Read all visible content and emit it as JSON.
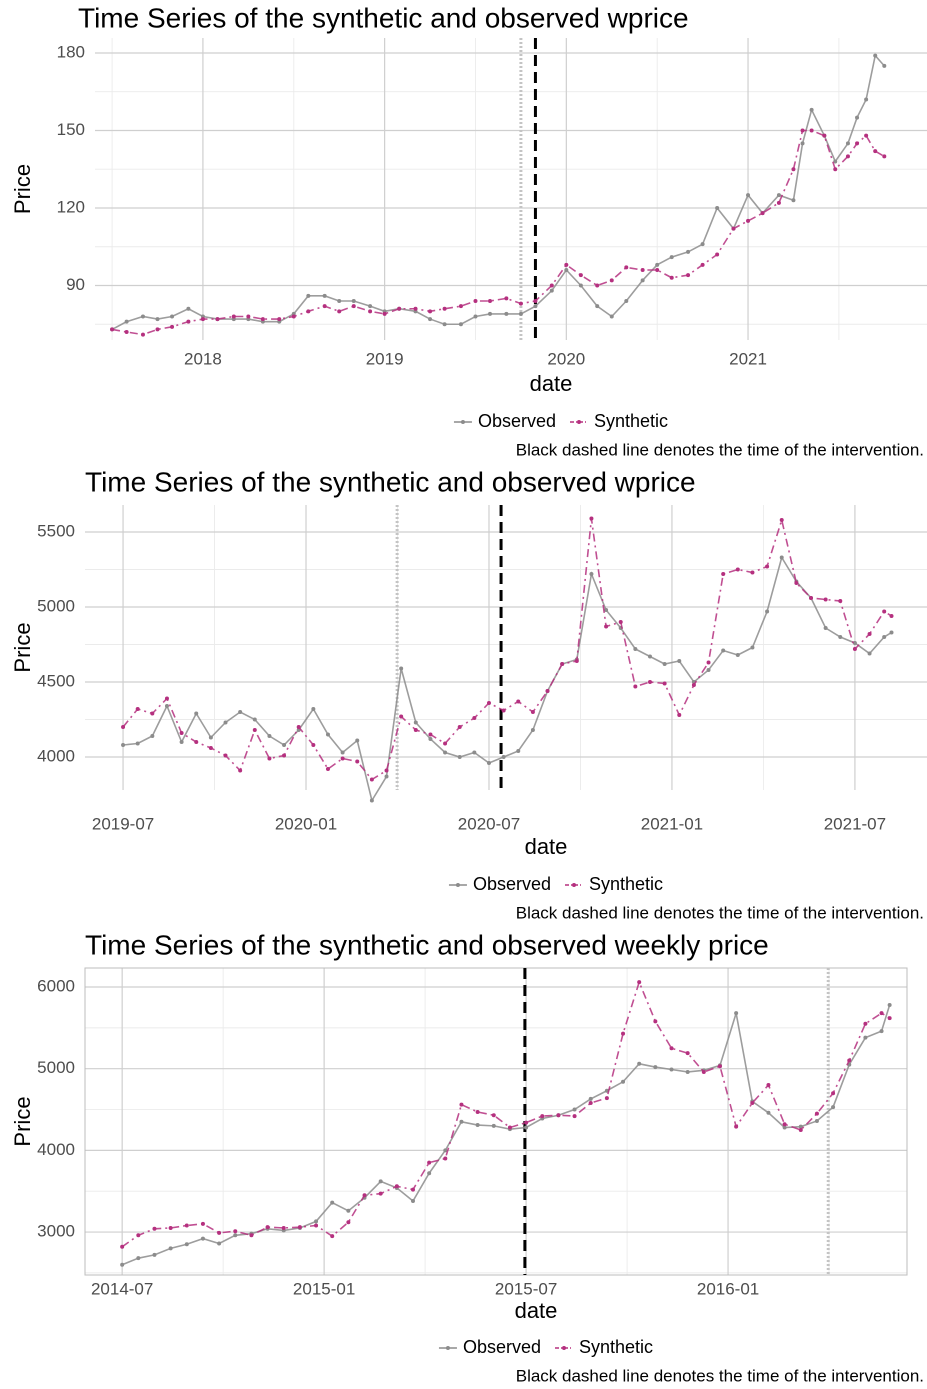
{
  "chart_data": [
    {
      "type": "line",
      "title": "Time Series of the synthetic and observed wprice",
      "x_label": "date",
      "y_label": "Price",
      "caption": "Black dashed line denotes the time of the intervention.",
      "legend": "bottom",
      "grid": true,
      "border": false,
      "xlim": [
        2017.406,
        2021.985
      ],
      "xticks": [
        2018,
        2019,
        2020,
        2021
      ],
      "ylim": [
        68.9,
        185.8
      ],
      "yticks": [
        90,
        120,
        150,
        180
      ],
      "intervention": 2019.83,
      "reference": 2019.75,
      "x": [
        2017.5,
        2017.58,
        2017.67,
        2017.75,
        2017.83,
        2017.92,
        2018,
        2018.08,
        2018.17,
        2018.25,
        2018.33,
        2018.42,
        2018.5,
        2018.58,
        2018.67,
        2018.75,
        2018.83,
        2018.92,
        2019,
        2019.08,
        2019.17,
        2019.25,
        2019.33,
        2019.42,
        2019.5,
        2019.58,
        2019.67,
        2019.75,
        2019.83,
        2019.92,
        2020,
        2020.08,
        2020.17,
        2020.25,
        2020.33,
        2020.42,
        2020.5,
        2020.58,
        2020.67,
        2020.75,
        2020.83,
        2020.92,
        2021,
        2021.08,
        2021.17,
        2021.25,
        2021.3,
        2021.35,
        2021.42,
        2021.48,
        2021.55,
        2021.6,
        2021.65,
        2021.7,
        2021.75
      ],
      "series": [
        {
          "name": "Observed",
          "color": "#8c8c8c",
          "line": "solid",
          "values": [
            73,
            76,
            78,
            77,
            78,
            81,
            78,
            77,
            77,
            77,
            76,
            76,
            79,
            86,
            86,
            84,
            84,
            82,
            80,
            81,
            80,
            77,
            75,
            75,
            78,
            79,
            79,
            79,
            82,
            88,
            96,
            90,
            82,
            78,
            84,
            92,
            98,
            101,
            103,
            106,
            120,
            112,
            125,
            118,
            125,
            123,
            145,
            158,
            148,
            138,
            145,
            155,
            162,
            179,
            175
          ]
        },
        {
          "name": "Synthetic",
          "color": "#b5307f",
          "line": "dashdot",
          "values": [
            73,
            72,
            71,
            73,
            74,
            76,
            77,
            77,
            78,
            78,
            77,
            77,
            78,
            80,
            82,
            80,
            82,
            80,
            79,
            81,
            81,
            80,
            81,
            82,
            84,
            84,
            85,
            83,
            84,
            90,
            98,
            94,
            90,
            92,
            97,
            96,
            96,
            93,
            94,
            98,
            102,
            112,
            115,
            118,
            122,
            135,
            150,
            150,
            148,
            135,
            140,
            145,
            148,
            142,
            140
          ]
        }
      ]
    },
    {
      "type": "line",
      "title": "Time Series of the synthetic and observed wprice",
      "x_label": "date",
      "y_label": "Price",
      "caption": "Black dashed line denotes the time of the intervention.",
      "legend": "bottom",
      "grid": true,
      "border": false,
      "xlim": [
        2019.396,
        2021.697
      ],
      "xticks": [
        {
          "value": 2019.5,
          "label": "2019-07"
        },
        {
          "value": 2020,
          "label": "2020-01"
        },
        {
          "value": 2020.5,
          "label": "2020-07"
        },
        {
          "value": 2021,
          "label": "2021-01"
        },
        {
          "value": 2021.5,
          "label": "2021-07"
        }
      ],
      "ylim": [
        3780,
        5680
      ],
      "yticks": [
        4000,
        4500,
        5000,
        5500
      ],
      "intervention": 2020.533,
      "reference": 2020.249,
      "x": [
        2019.5,
        2019.54,
        2019.58,
        2019.62,
        2019.66,
        2019.7,
        2019.74,
        2019.78,
        2019.82,
        2019.86,
        2019.9,
        2019.94,
        2019.98,
        2020.02,
        2020.06,
        2020.1,
        2020.14,
        2020.18,
        2020.22,
        2020.26,
        2020.3,
        2020.34,
        2020.38,
        2020.42,
        2020.46,
        2020.5,
        2020.54,
        2020.58,
        2020.62,
        2020.66,
        2020.7,
        2020.74,
        2020.78,
        2020.82,
        2020.86,
        2020.9,
        2020.94,
        2020.98,
        2021.02,
        2021.06,
        2021.1,
        2021.14,
        2021.18,
        2021.22,
        2021.26,
        2021.3,
        2021.34,
        2021.38,
        2021.42,
        2021.46,
        2021.5,
        2021.54,
        2021.58,
        2021.6
      ],
      "series": [
        {
          "name": "Observed",
          "color": "#8c8c8c",
          "line": "solid",
          "values": [
            4080,
            4090,
            4140,
            4340,
            4100,
            4290,
            4130,
            4230,
            4300,
            4250,
            4140,
            4080,
            4180,
            4320,
            4150,
            4030,
            4110,
            3710,
            3870,
            4590,
            4230,
            4120,
            4030,
            4000,
            4030,
            3960,
            4000,
            4040,
            4180,
            4440,
            4620,
            4650,
            5220,
            4980,
            4860,
            4720,
            4670,
            4620,
            4640,
            4500,
            4580,
            4710,
            4680,
            4730,
            4970,
            5330,
            5170,
            5060,
            4860,
            4800,
            4760,
            4690,
            4800,
            4830
          ]
        },
        {
          "name": "Synthetic",
          "color": "#b5307f",
          "line": "dashdot",
          "values": [
            4200,
            4320,
            4290,
            4390,
            4160,
            4100,
            4060,
            4010,
            3910,
            4180,
            3990,
            4010,
            4200,
            4080,
            3920,
            3990,
            3970,
            3850,
            3910,
            4270,
            4180,
            4150,
            4090,
            4200,
            4260,
            4360,
            4310,
            4370,
            4300,
            4440,
            4620,
            4640,
            5590,
            4870,
            4900,
            4470,
            4500,
            4490,
            4280,
            4480,
            4630,
            5220,
            5250,
            5230,
            5270,
            5580,
            5160,
            5060,
            5050,
            5040,
            4720,
            4820,
            4970,
            4940
          ]
        }
      ]
    },
    {
      "type": "line",
      "title": "Time Series of the synthetic and observed weekly price",
      "x_label": "date",
      "y_label": "Price",
      "caption": "Black dashed line denotes the time of the intervention.",
      "legend": "bottom",
      "grid": true,
      "border": true,
      "xlim": [
        2014.408,
        2016.443
      ],
      "xticks": [
        {
          "value": 2014.5,
          "label": "2014-07"
        },
        {
          "value": 2015,
          "label": "2015-01"
        },
        {
          "value": 2015.5,
          "label": "2015-07"
        },
        {
          "value": 2016,
          "label": "2016-01"
        }
      ],
      "ylim": [
        2474,
        6233
      ],
      "yticks": [
        3000,
        4000,
        5000,
        6000
      ],
      "intervention": 2015.497,
      "reference": 2016.248,
      "x": [
        2014.5,
        2014.54,
        2014.58,
        2014.62,
        2014.66,
        2014.7,
        2014.74,
        2014.78,
        2014.82,
        2014.86,
        2014.9,
        2014.94,
        2014.98,
        2015.02,
        2015.06,
        2015.1,
        2015.14,
        2015.18,
        2015.22,
        2015.26,
        2015.3,
        2015.34,
        2015.38,
        2015.42,
        2015.46,
        2015.5,
        2015.54,
        2015.58,
        2015.62,
        2015.66,
        2015.7,
        2015.74,
        2015.78,
        2015.82,
        2015.86,
        2015.9,
        2015.94,
        2015.98,
        2016.02,
        2016.06,
        2016.1,
        2016.14,
        2016.18,
        2016.22,
        2016.26,
        2016.3,
        2016.34,
        2016.38,
        2016.4
      ],
      "series": [
        {
          "name": "Observed",
          "color": "#8c8c8c",
          "line": "solid",
          "values": [
            2600,
            2680,
            2720,
            2800,
            2850,
            2920,
            2860,
            2960,
            2980,
            3040,
            3020,
            3050,
            3130,
            3360,
            3260,
            3420,
            3620,
            3540,
            3380,
            3720,
            4000,
            4350,
            4310,
            4300,
            4260,
            4280,
            4390,
            4430,
            4500,
            4630,
            4730,
            4840,
            5060,
            5020,
            4990,
            4960,
            4980,
            5040,
            5680,
            4600,
            4460,
            4280,
            4290,
            4360,
            4530,
            5050,
            5380,
            5460,
            5780
          ]
        },
        {
          "name": "Synthetic",
          "color": "#b5307f",
          "line": "dashdot",
          "values": [
            2820,
            2960,
            3040,
            3050,
            3080,
            3100,
            2990,
            3010,
            2960,
            3060,
            3050,
            3060,
            3080,
            2950,
            3120,
            3450,
            3470,
            3560,
            3520,
            3850,
            3900,
            4560,
            4470,
            4430,
            4280,
            4340,
            4420,
            4430,
            4420,
            4580,
            4640,
            5430,
            6060,
            5580,
            5250,
            5190,
            4960,
            5030,
            4290,
            4580,
            4800,
            4320,
            4250,
            4450,
            4700,
            5100,
            5550,
            5680,
            5620
          ]
        }
      ]
    }
  ]
}
